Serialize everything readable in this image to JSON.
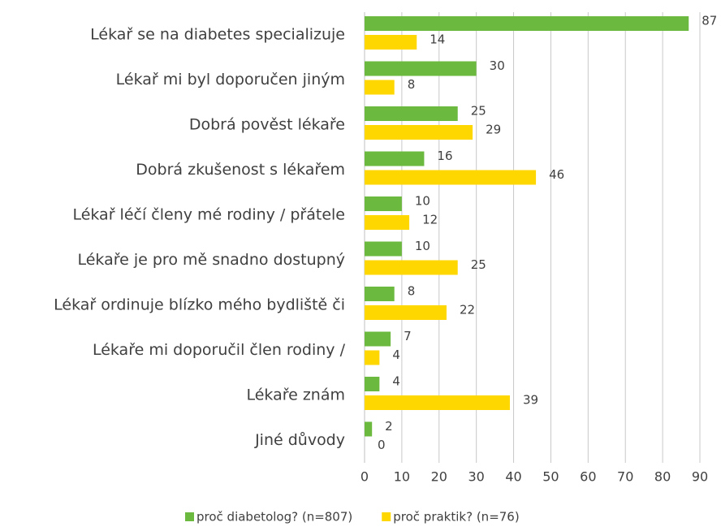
{
  "chart_data": {
    "type": "bar",
    "orientation": "horizontal",
    "categories": [
      "Lékař se na diabetes specializuje",
      "Lékař mi byl doporučen jiným",
      "Dobrá pověst lékaře",
      "Dobrá zkušenost s lékařem",
      "Lékař léčí členy mé rodiny / přátele",
      "Lékaře je pro mě snadno dostupný",
      "Lékař ordinuje blízko mého bydliště či",
      "Lékaře mi doporučil člen rodiny /",
      "Lékaře znám",
      "Jiné důvody"
    ],
    "series": [
      {
        "name": "proč diabetolog? (n=807)",
        "color": "#6cb93f",
        "values": [
          87,
          30,
          25,
          16,
          10,
          10,
          8,
          7,
          4,
          2
        ]
      },
      {
        "name": "proč praktik? (n=76)",
        "color": "#ffd700",
        "values": [
          14,
          8,
          29,
          46,
          12,
          25,
          22,
          4,
          39,
          0
        ]
      }
    ],
    "xlim": [
      0,
      90
    ],
    "xticks": [
      0,
      10,
      20,
      30,
      40,
      50,
      60,
      70,
      80,
      90
    ],
    "grid": true,
    "legend": "bottom"
  }
}
